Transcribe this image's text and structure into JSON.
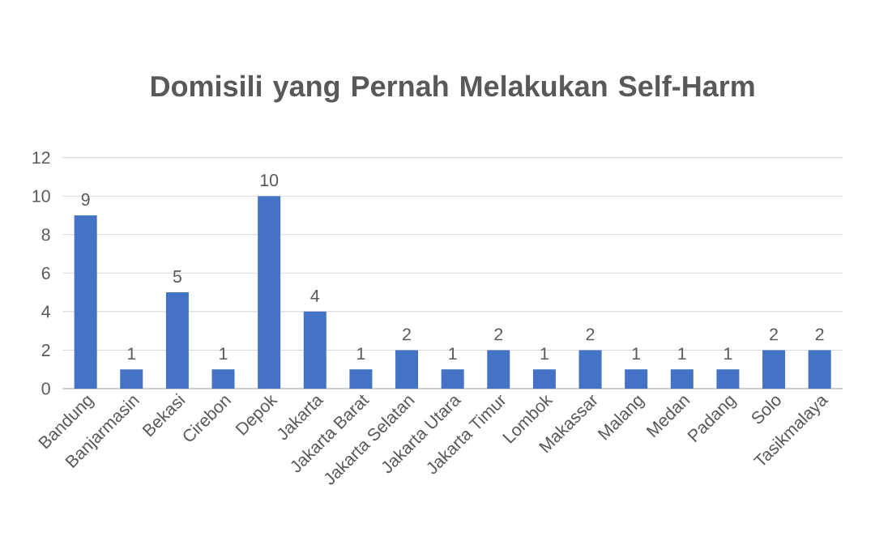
{
  "chart_data": {
    "type": "bar",
    "title": "Domisili yang Pernah Melakukan Self-Harm",
    "categories": [
      "Bandung",
      "Banjarmasin",
      "Bekasi",
      "Cirebon",
      "Depok",
      "Jakarta",
      "Jakarta Barat",
      "Jakarta Selatan",
      "Jakarta Utara",
      "Jakarta Timur",
      "Lombok",
      "Makassar",
      "Malang",
      "Medan",
      "Padang",
      "Solo",
      "Tasikmalaya"
    ],
    "values": [
      9,
      1,
      5,
      1,
      10,
      4,
      1,
      2,
      1,
      2,
      1,
      2,
      1,
      1,
      1,
      2,
      2
    ],
    "color": "#4472c4",
    "ylim": [
      0,
      12
    ],
    "yticks": [
      0,
      2,
      4,
      6,
      8,
      10,
      12
    ],
    "grid": "y",
    "data_labels": true
  }
}
